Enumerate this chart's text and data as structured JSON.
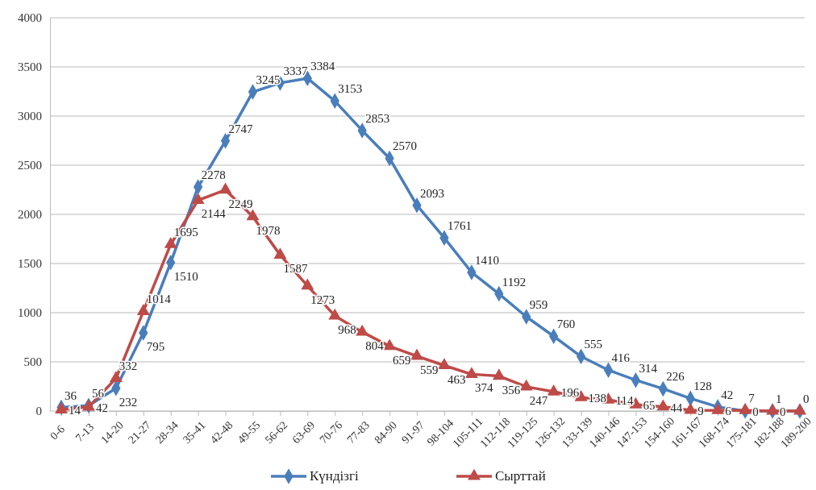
{
  "chart_data": {
    "type": "line",
    "categories": [
      "0-6",
      "7-13",
      "14-20",
      "21-27",
      "28-34",
      "35-41",
      "42-48",
      "49-55",
      "56-62",
      "63-69",
      "70-76",
      "77-83",
      "84-90",
      "91-97",
      "98-104",
      "105-111",
      "112-118",
      "119-125",
      "126-132",
      "133-139",
      "140-146",
      "147-153",
      "154-160",
      "161-167",
      "168-174",
      "175-181",
      "182-188",
      "189-200"
    ],
    "series": [
      {
        "name": "Күндізгі",
        "color": "#4a7ebb",
        "marker": "diamond",
        "values": [
          36,
          56,
          232,
          795,
          1510,
          2278,
          2747,
          3245,
          3337,
          3384,
          3153,
          2853,
          2570,
          2093,
          1761,
          1410,
          1192,
          959,
          760,
          555,
          416,
          314,
          226,
          128,
          42,
          0,
          1,
          0
        ]
      },
      {
        "name": "Сырттай",
        "color": "#be4b48",
        "marker": "triangle",
        "values": [
          14,
          42,
          332,
          1014,
          1695,
          2144,
          2249,
          1978,
          1587,
          1273,
          968,
          804,
          659,
          559,
          463,
          374,
          356,
          247,
          196,
          138,
          114,
          65,
          44,
          9,
          6,
          7,
          0,
          0
        ],
        "value_labels": [
          "14",
          "42",
          "332",
          "1014",
          "1695",
          "2144",
          "2249",
          "1978",
          "1587",
          "1273",
          "968",
          "804",
          "659",
          "559",
          "463",
          "374",
          "356",
          "247",
          "196",
          "138",
          "114",
          "65",
          "44",
          "9",
          "6",
          "7",
          "0",
          null
        ]
      }
    ],
    "ylim": [
      0,
      4000
    ],
    "yticks": [
      0,
      500,
      1000,
      1500,
      2000,
      2500,
      3000,
      3500,
      4000
    ],
    "grid": "y",
    "legend": "bottom",
    "data_labels": true
  }
}
